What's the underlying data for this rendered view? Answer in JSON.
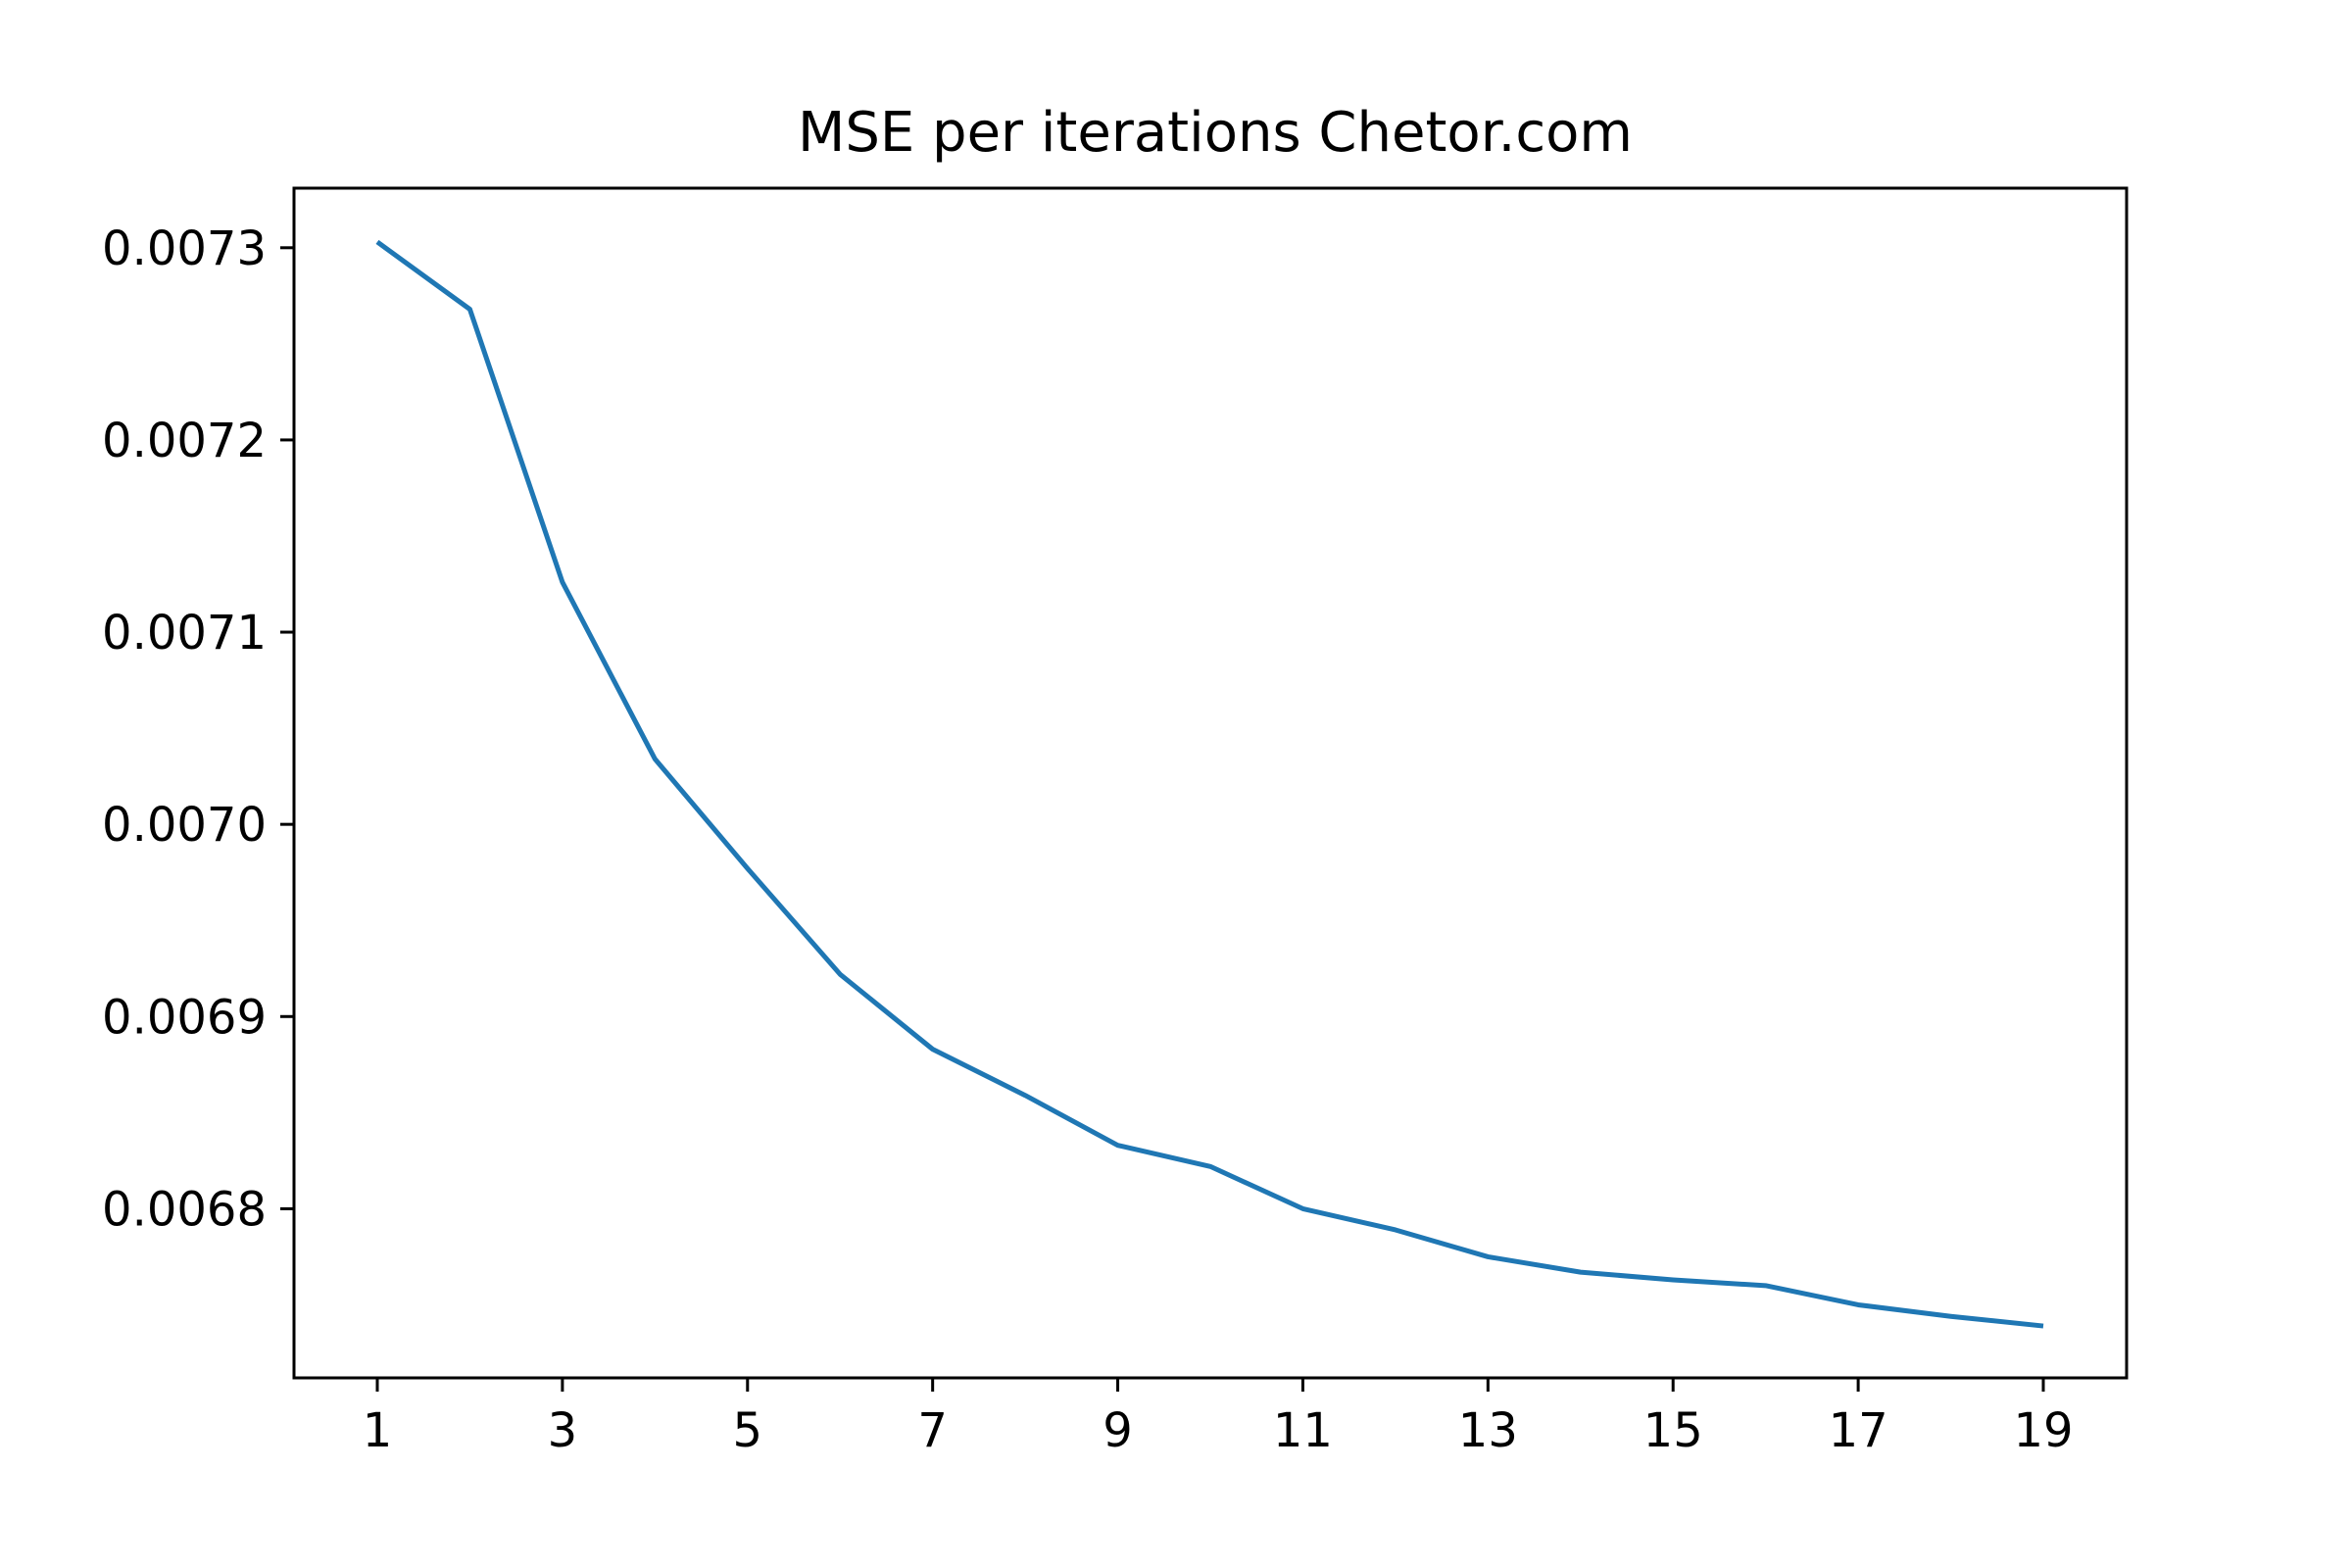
{
  "chart_data": {
    "type": "line",
    "title": "MSE per iterations Chetor.com",
    "xlabel": "",
    "ylabel": "",
    "x": [
      1,
      2,
      3,
      4,
      5,
      6,
      7,
      8,
      9,
      10,
      11,
      12,
      13,
      14,
      15,
      16,
      17,
      18,
      19
    ],
    "series": [
      {
        "values": [
          0.007303,
          0.007268,
          0.007126,
          0.007034,
          0.006977,
          0.006922,
          0.006883,
          0.006859,
          0.006833,
          0.006822,
          0.0068,
          0.006789,
          0.006775,
          0.006767,
          0.006763,
          0.00676,
          0.00675,
          0.006744,
          0.006739
        ]
      }
    ],
    "xticks": [
      1,
      3,
      5,
      7,
      9,
      11,
      13,
      15,
      17,
      19
    ],
    "xtick_labels": [
      "1",
      "3",
      "5",
      "7",
      "9",
      "11",
      "13",
      "15",
      "17",
      "19"
    ],
    "yticks": [
      0.0068,
      0.0069,
      0.007,
      0.0071,
      0.0072,
      0.0073
    ],
    "ytick_labels": [
      "0.0068",
      "0.0069",
      "0.0070",
      "0.0071",
      "0.0072",
      "0.0073"
    ],
    "xlim": [
      0.1,
      19.9
    ],
    "ylim": [
      0.006712,
      0.007331
    ],
    "grid": false,
    "line_color": "#1f77b4"
  }
}
